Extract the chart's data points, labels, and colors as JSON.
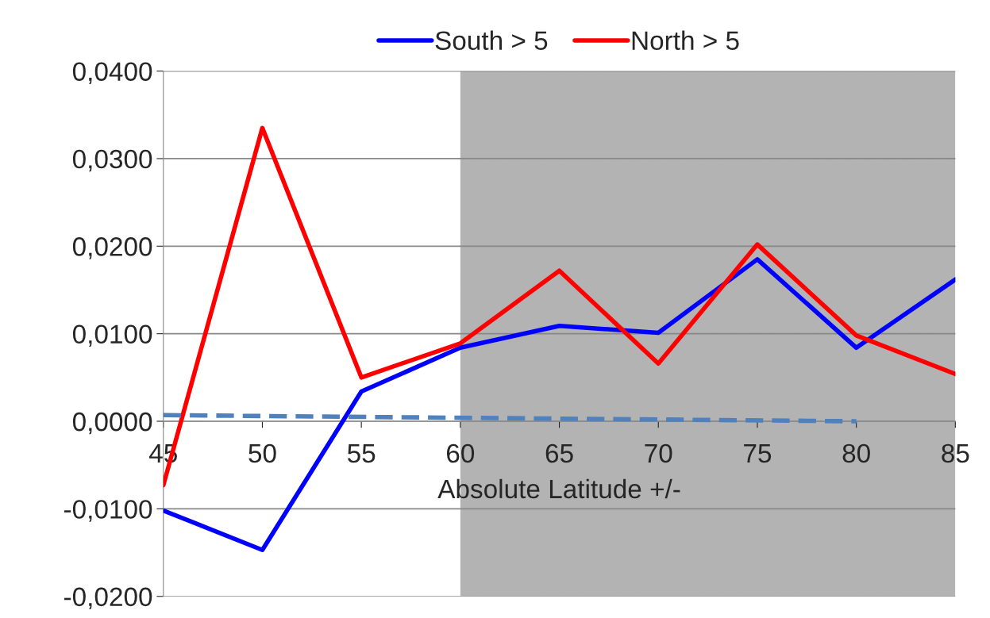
{
  "chart_data": {
    "type": "line",
    "xlabel": "Absolute Latitude +/-",
    "x": [
      45,
      50,
      55,
      60,
      65,
      70,
      75,
      80,
      85
    ],
    "series": [
      {
        "name": "South > 5",
        "color": "#0000ff",
        "values": [
          -0.0102,
          -0.0147,
          0.0034,
          0.0084,
          0.0109,
          0.0101,
          0.0185,
          0.0084,
          0.0162
        ]
      },
      {
        "name": "North > 5",
        "color": "#ff0000",
        "values": [
          -0.0073,
          0.0335,
          0.005,
          0.0089,
          0.0172,
          0.0066,
          0.0202,
          0.0098,
          0.0054
        ]
      },
      {
        "type": "line",
        "color": "#4f81bd",
        "line_style": "dashed",
        "x": [
          45,
          80
        ],
        "values": [
          0.0007,
          0.0
        ]
      }
    ],
    "xlim": [
      45,
      85
    ],
    "xticks": [
      45,
      50,
      55,
      60,
      65,
      70,
      75,
      80,
      85
    ],
    "ylim": [
      -0.02,
      0.04
    ],
    "yticks": [
      {
        "value": -0.02,
        "label": "-0,0200"
      },
      {
        "value": -0.01,
        "label": "-0,0100"
      },
      {
        "value": 0,
        "label": "0,0000"
      },
      {
        "value": 0.01,
        "label": "0,0100"
      },
      {
        "value": 0.02,
        "label": "0,0200"
      },
      {
        "value": 0.03,
        "label": "0,0300"
      },
      {
        "value": 0.04,
        "label": "0,0400"
      }
    ],
    "bands": [
      {
        "axis": "x",
        "from": 60,
        "to": 85,
        "color": "#a6a6a6"
      }
    ],
    "grid": "y",
    "legend": "top",
    "marker": "none"
  }
}
